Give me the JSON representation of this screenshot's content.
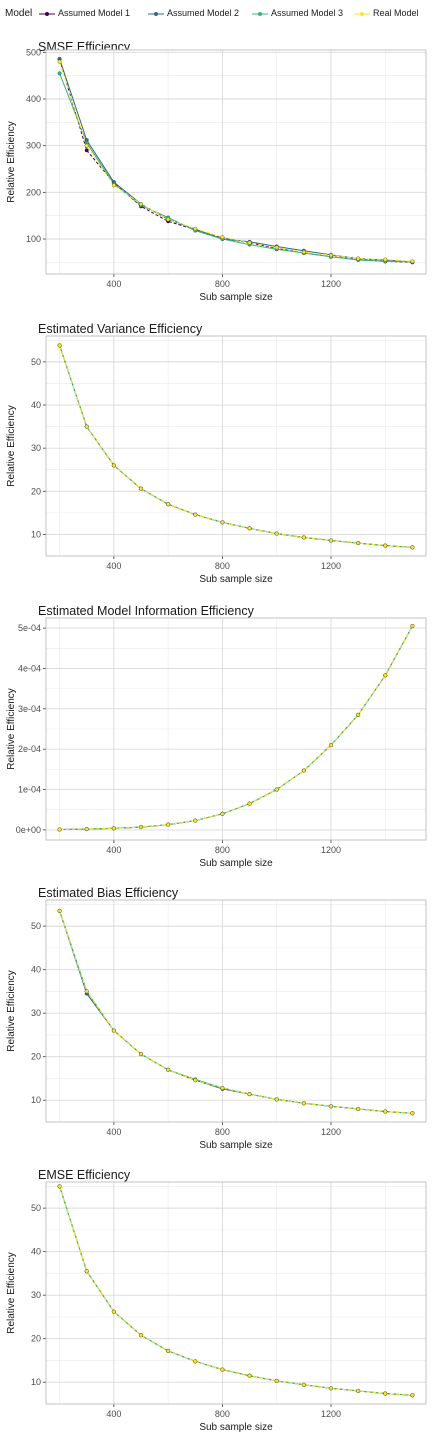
{
  "legend": {
    "title": "Model",
    "items": [
      {
        "name": "Assumed Model 1",
        "color": "#440154"
      },
      {
        "name": "Assumed Model 2",
        "color": "#31688e"
      },
      {
        "name": "Assumed Model 3",
        "color": "#35b779"
      },
      {
        "name": "Real Model",
        "color": "#fde725"
      }
    ]
  },
  "chart_data": [
    {
      "type": "line",
      "title": "SMSE Efficiency",
      "xlabel": "Sub sample size",
      "ylabel": "Relative Efficiency",
      "xlim": [
        150,
        1550
      ],
      "ylim": [
        25,
        505
      ],
      "xticks": [
        400,
        800,
        1200
      ],
      "xtick_labels": [
        "400",
        "800",
        "1200"
      ],
      "yticks": [
        100,
        200,
        300,
        400,
        500
      ],
      "ytick_labels": [
        "100",
        "200",
        "300",
        "400",
        "500"
      ],
      "grid": true,
      "x": [
        200,
        300,
        400,
        500,
        600,
        700,
        800,
        900,
        1000,
        1100,
        1200,
        1300,
        1400,
        1500
      ],
      "series": [
        {
          "name": "Assumed Model 1",
          "values": [
            485,
            290,
            220,
            170,
            138,
            120,
            102,
            92,
            80,
            70,
            62,
            56,
            52,
            50
          ]
        },
        {
          "name": "Assumed Model 2",
          "values": [
            486,
            312,
            222,
            175,
            142,
            121,
            100,
            94,
            84,
            75,
            66,
            58,
            55,
            51
          ]
        },
        {
          "name": "Assumed Model 3",
          "values": [
            455,
            306,
            218,
            172,
            146,
            118,
            100,
            88,
            78,
            70,
            62,
            55,
            52,
            51
          ]
        },
        {
          "name": "Real Model",
          "values": [
            480,
            300,
            215,
            175,
            142,
            122,
            104,
            92,
            82,
            72,
            65,
            58,
            56,
            52
          ]
        }
      ]
    },
    {
      "type": "line",
      "title": "Estimated Variance Efficiency",
      "xlabel": "Sub sample size",
      "ylabel": "Relative Efficiency",
      "xlim": [
        150,
        1550
      ],
      "ylim": [
        5,
        56
      ],
      "xticks": [
        400,
        800,
        1200
      ],
      "xtick_labels": [
        "400",
        "800",
        "1200"
      ],
      "yticks": [
        10,
        20,
        30,
        40,
        50
      ],
      "ytick_labels": [
        "10",
        "20",
        "30",
        "40",
        "50"
      ],
      "grid": true,
      "x": [
        200,
        300,
        400,
        500,
        600,
        700,
        800,
        900,
        1000,
        1100,
        1200,
        1300,
        1400,
        1500
      ],
      "series": [
        {
          "name": "Assumed Model 1",
          "values": [
            53.8,
            35,
            26,
            20.6,
            17,
            14.6,
            12.8,
            11.4,
            10.2,
            9.3,
            8.6,
            8,
            7.4,
            7
          ]
        },
        {
          "name": "Assumed Model 2",
          "values": [
            53.8,
            35,
            26,
            20.6,
            17,
            14.6,
            12.8,
            11.4,
            10.2,
            9.3,
            8.6,
            8,
            7.4,
            7
          ]
        },
        {
          "name": "Assumed Model 3",
          "values": [
            53.8,
            35,
            26,
            20.6,
            17,
            14.6,
            12.8,
            11.4,
            10.2,
            9.3,
            8.6,
            8,
            7.4,
            7
          ]
        },
        {
          "name": "Real Model",
          "values": [
            53.8,
            35,
            26,
            20.6,
            17,
            14.6,
            12.8,
            11.4,
            10.2,
            9.3,
            8.6,
            8,
            7.4,
            7
          ]
        }
      ]
    },
    {
      "type": "line",
      "title": "Estimated Model Information Efficiency",
      "xlabel": "Sub sample size",
      "ylabel": "Relative Efficiency",
      "xlim": [
        150,
        1550
      ],
      "ylim": [
        -2.5e-05,
        0.000525
      ],
      "xticks": [
        400,
        800,
        1200
      ],
      "xtick_labels": [
        "400",
        "800",
        "1200"
      ],
      "yticks": [
        0,
        0.0001,
        0.0002,
        0.0003,
        0.0004,
        0.0005
      ],
      "ytick_labels": [
        "0e+00",
        "1e-04",
        "2e-04",
        "3e-04",
        "4e-04",
        "5e-04"
      ],
      "grid": true,
      "x": [
        200,
        300,
        400,
        500,
        600,
        700,
        800,
        900,
        1000,
        1100,
        1200,
        1300,
        1400,
        1500
      ],
      "series": [
        {
          "name": "Assumed Model 1",
          "values": [
            1e-06,
            2e-06,
            4e-06,
            7e-06,
            1.3e-05,
            2.3e-05,
            4e-05,
            6.5e-05,
            0.0001,
            0.000147,
            0.00021,
            0.000285,
            0.000383,
            0.000505
          ]
        },
        {
          "name": "Assumed Model 2",
          "values": [
            1e-06,
            2e-06,
            4e-06,
            7e-06,
            1.3e-05,
            2.3e-05,
            4e-05,
            6.5e-05,
            0.0001,
            0.000147,
            0.00021,
            0.000285,
            0.000383,
            0.000505
          ]
        },
        {
          "name": "Assumed Model 3",
          "values": [
            1e-06,
            2e-06,
            4e-06,
            7e-06,
            1.3e-05,
            2.3e-05,
            4e-05,
            6.5e-05,
            0.0001,
            0.000147,
            0.00021,
            0.000285,
            0.000383,
            0.000505
          ]
        },
        {
          "name": "Real Model",
          "values": [
            1e-06,
            2e-06,
            4e-06,
            7e-06,
            1.3e-05,
            2.3e-05,
            4e-05,
            6.5e-05,
            0.0001,
            0.000147,
            0.00021,
            0.000285,
            0.000383,
            0.000505
          ]
        }
      ]
    },
    {
      "type": "line",
      "title": "Estimated Bias Efficiency",
      "xlabel": "Sub sample size",
      "ylabel": "Relative Efficiency",
      "xlim": [
        150,
        1550
      ],
      "ylim": [
        5,
        56
      ],
      "xticks": [
        400,
        800,
        1200
      ],
      "xtick_labels": [
        "400",
        "800",
        "1200"
      ],
      "yticks": [
        10,
        20,
        30,
        40,
        50
      ],
      "ytick_labels": [
        "10",
        "20",
        "30",
        "40",
        "50"
      ],
      "grid": true,
      "x": [
        200,
        300,
        400,
        500,
        600,
        700,
        800,
        900,
        1000,
        1100,
        1200,
        1300,
        1400,
        1500
      ],
      "series": [
        {
          "name": "Assumed Model 1",
          "values": [
            53.5,
            35,
            26,
            20.6,
            17,
            14.6,
            12.8,
            11.4,
            10.2,
            9.3,
            8.6,
            8,
            7.4,
            7
          ]
        },
        {
          "name": "Assumed Model 2",
          "values": [
            53.5,
            34.5,
            26,
            20.6,
            17,
            14.6,
            12.6,
            11.4,
            10.2,
            9.3,
            8.6,
            8,
            7.4,
            7
          ]
        },
        {
          "name": "Assumed Model 3",
          "values": [
            53.5,
            35,
            26,
            20.6,
            17,
            14.8,
            12.8,
            11.4,
            10.2,
            9.3,
            8.6,
            8,
            7.4,
            7
          ]
        },
        {
          "name": "Real Model",
          "values": [
            53.5,
            35,
            26,
            20.6,
            17,
            14.6,
            12.8,
            11.4,
            10.2,
            9.3,
            8.6,
            8,
            7.4,
            7
          ]
        }
      ]
    },
    {
      "type": "line",
      "title": "EMSE Efficiency",
      "xlabel": "Sub sample size",
      "ylabel": "Relative Efficiency",
      "xlim": [
        150,
        1550
      ],
      "ylim": [
        5,
        56
      ],
      "xticks": [
        400,
        800,
        1200
      ],
      "xtick_labels": [
        "400",
        "800",
        "1200"
      ],
      "yticks": [
        10,
        20,
        30,
        40,
        50
      ],
      "ytick_labels": [
        "10",
        "20",
        "30",
        "40",
        "50"
      ],
      "grid": true,
      "x": [
        200,
        300,
        400,
        500,
        600,
        700,
        800,
        900,
        1000,
        1100,
        1200,
        1300,
        1400,
        1500
      ],
      "series": [
        {
          "name": "Assumed Model 1",
          "values": [
            55,
            35.5,
            26.2,
            20.8,
            17.2,
            14.8,
            12.9,
            11.5,
            10.3,
            9.4,
            8.6,
            8,
            7.4,
            7
          ]
        },
        {
          "name": "Assumed Model 2",
          "values": [
            55,
            35.5,
            26.2,
            20.8,
            17.2,
            14.8,
            12.9,
            11.5,
            10.3,
            9.4,
            8.6,
            8,
            7.4,
            7
          ]
        },
        {
          "name": "Assumed Model 3",
          "values": [
            55,
            35.5,
            26.2,
            20.8,
            17.2,
            14.8,
            12.9,
            11.5,
            10.3,
            9.4,
            8.6,
            8,
            7.4,
            7
          ]
        },
        {
          "name": "Real Model",
          "values": [
            55,
            35.5,
            26.2,
            20.8,
            17.2,
            14.8,
            12.9,
            11.5,
            10.3,
            9.4,
            8.6,
            8,
            7.4,
            7
          ]
        }
      ]
    }
  ]
}
